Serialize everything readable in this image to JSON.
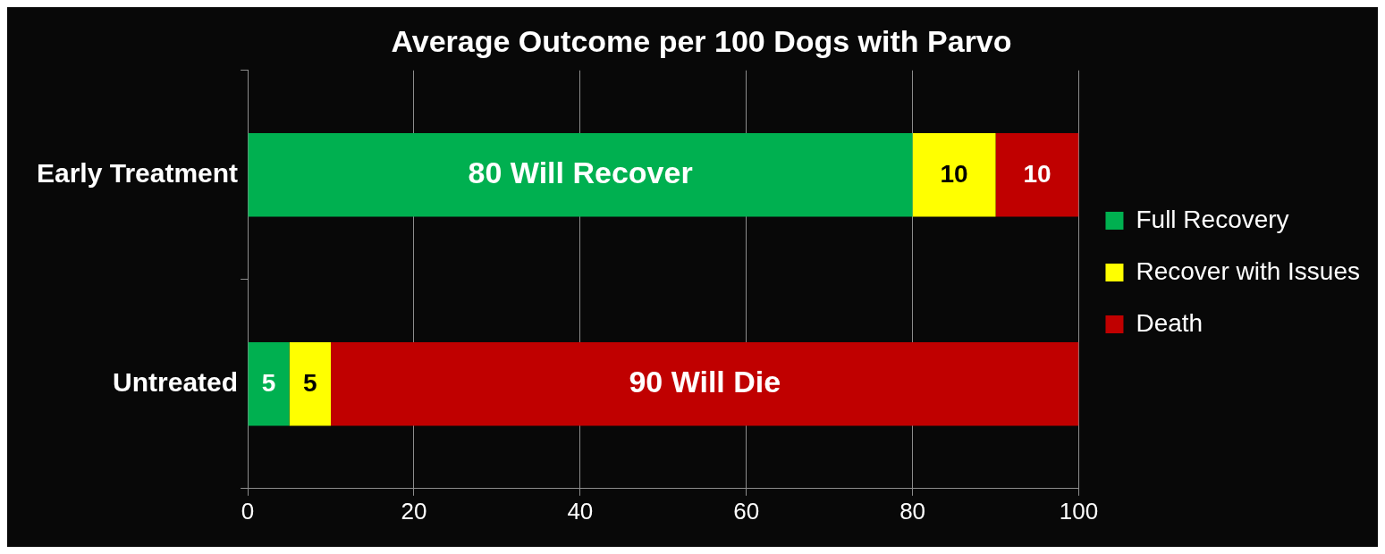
{
  "chart_data": {
    "type": "bar",
    "orientation": "horizontal",
    "stacked": true,
    "title": "Average Outcome per 100 Dogs with Parvo",
    "categories": [
      "Early Treatment",
      "Untreated"
    ],
    "series": [
      {
        "name": "Full Recovery",
        "color": "#00b050",
        "values": [
          80,
          5
        ],
        "value_labels": [
          "80 Will Recover",
          "5"
        ]
      },
      {
        "name": "Recover with Issues",
        "color": "#ffff00",
        "values": [
          10,
          5
        ],
        "value_labels": [
          "10",
          "5"
        ]
      },
      {
        "name": "Death",
        "color": "#c00000",
        "values": [
          10,
          90
        ],
        "value_labels": [
          "10",
          "90 Will Die"
        ]
      }
    ],
    "xlim": [
      0,
      100
    ],
    "xticks": [
      0,
      20,
      40,
      60,
      80,
      100
    ],
    "grid": "x",
    "legend": "right"
  }
}
